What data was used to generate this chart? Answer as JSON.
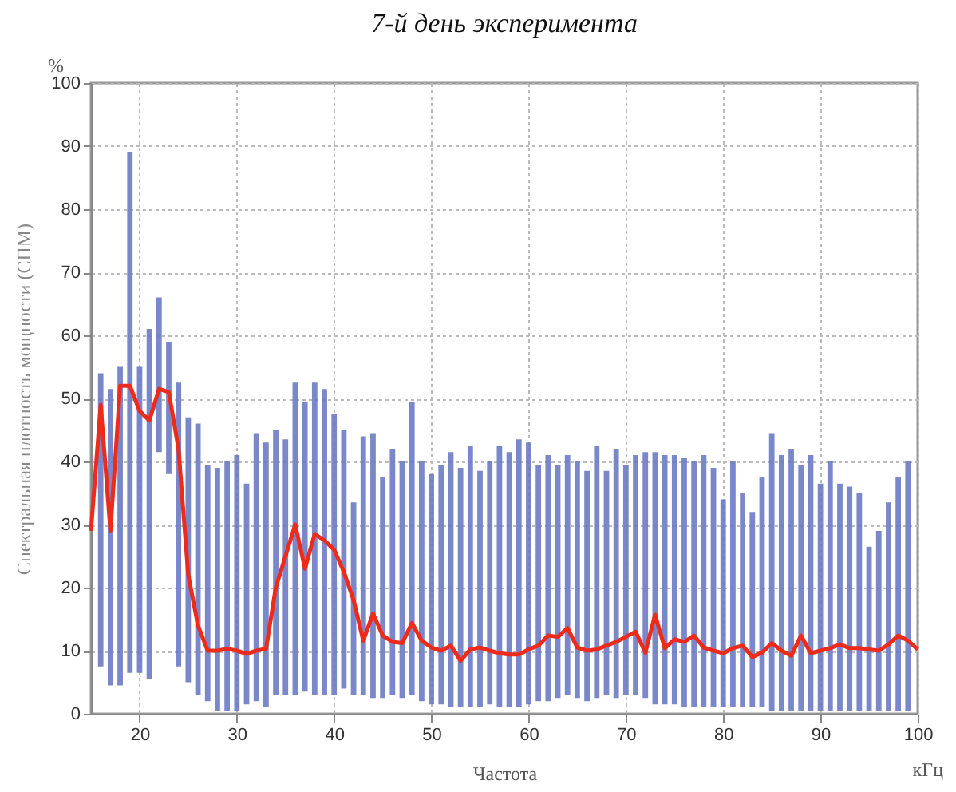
{
  "chart_data": {
    "type": "bar",
    "title": "7-й день эксперимента",
    "xlabel": "Частота",
    "ylabel": "Спектральная плотность мощности (СПМ)",
    "annotations": [
      "%",
      "кГц"
    ],
    "xlim": [
      15,
      100
    ],
    "xticks": [
      20,
      30,
      40,
      50,
      60,
      70,
      80,
      90,
      100
    ],
    "ylim": [
      0,
      100
    ],
    "yticks": [
      0,
      10,
      20,
      30,
      40,
      50,
      60,
      70,
      80,
      90,
      100
    ],
    "grid": true,
    "series": [
      {
        "color": "#6c7bc4",
        "x": [
          16,
          17,
          18,
          19,
          20,
          21,
          22,
          23,
          24,
          25,
          26,
          27,
          28,
          29,
          30,
          31,
          32,
          33,
          34,
          35,
          36,
          37,
          38,
          39,
          40,
          41,
          42,
          43,
          44,
          45,
          46,
          47,
          48,
          49,
          50,
          51,
          52,
          53,
          54,
          55,
          56,
          57,
          58,
          59,
          60,
          61,
          62,
          63,
          64,
          65,
          66,
          67,
          68,
          69,
          70,
          71,
          72,
          73,
          74,
          75,
          76,
          77,
          78,
          79,
          80,
          81,
          82,
          83,
          84,
          85,
          86,
          87,
          88,
          89,
          90,
          91,
          92,
          93,
          94,
          95,
          96,
          97,
          98,
          99
        ],
        "base": [
          7.5,
          4.5,
          4.5,
          6.5,
          6.5,
          5.5,
          41.5,
          38,
          7.5,
          5,
          3,
          2,
          0.5,
          0.5,
          0.5,
          1.5,
          2,
          1,
          3,
          3,
          3,
          3.5,
          3,
          3,
          3,
          4,
          3,
          3,
          2.5,
          2.5,
          3,
          2.5,
          3,
          2,
          1.5,
          1.5,
          1,
          1,
          1,
          1,
          1.5,
          1,
          1,
          1,
          1.5,
          2,
          2,
          2.5,
          3,
          2.5,
          2,
          2.5,
          3,
          2.5,
          3,
          3,
          2.5,
          1.5,
          1.5,
          1.5,
          1,
          1,
          1,
          1,
          1,
          1,
          1,
          1,
          1,
          0.5,
          0.5,
          0.5,
          0.5,
          0.5,
          0.5,
          0.5,
          0.5,
          0.5,
          0.5,
          0.5,
          0.5,
          0.5,
          0.5,
          0.5
        ],
        "values": [
          46.5,
          47,
          50.5,
          82.5,
          48.5,
          55.5,
          24.5,
          21,
          45,
          42,
          43,
          37.5,
          38.5,
          39.5,
          40.5,
          35,
          42.5,
          42,
          42,
          40.5,
          49.5,
          46,
          49.5,
          48.5,
          44.5,
          41,
          30.5,
          41,
          42,
          35,
          39,
          37.5,
          46.5,
          38,
          36.5,
          38,
          40.5,
          38,
          41.5,
          37.5,
          38.5,
          41.5,
          40.5,
          42.5,
          41.5,
          37.5,
          39,
          37,
          38,
          37.5,
          36.5,
          40,
          35.5,
          39.5,
          36.5,
          38,
          39,
          40,
          39.5,
          39.5,
          39.5,
          39,
          40,
          38,
          33,
          39,
          34,
          31,
          36.5,
          44,
          40.5,
          41.5,
          39,
          40.5,
          36,
          39.5,
          36,
          35.5,
          34.5,
          26,
          28.5,
          33,
          37,
          39.5
        ]
      },
      {
        "type": "line",
        "color": "#ee2a1b",
        "x": [
          15,
          16,
          17,
          18,
          19,
          20,
          21,
          22,
          23,
          24,
          25,
          26,
          27,
          28,
          29,
          30,
          31,
          32,
          33,
          34,
          35,
          36,
          37,
          38,
          39,
          40,
          41,
          42,
          43,
          44,
          45,
          46,
          47,
          48,
          49,
          50,
          51,
          52,
          53,
          54,
          55,
          56,
          57,
          58,
          59,
          60,
          61,
          62,
          63,
          64,
          65,
          66,
          67,
          68,
          69,
          70,
          71,
          72,
          73,
          74,
          75,
          76,
          77,
          78,
          79,
          80,
          81,
          82,
          83,
          84,
          85,
          86,
          87,
          88,
          89,
          90,
          91,
          92,
          93,
          94,
          95,
          96,
          97,
          98,
          99,
          100
        ],
        "values": [
          29,
          49,
          29,
          52,
          52,
          48,
          46.5,
          51.5,
          51,
          42,
          22,
          14,
          10,
          10,
          10.3,
          10,
          9.5,
          10,
          10.3,
          20,
          25,
          30,
          23,
          28.5,
          27.5,
          26,
          22.5,
          18,
          11.6,
          15.9,
          12.4,
          11.4,
          11.2,
          14.4,
          11.6,
          10.5,
          10,
          10.8,
          8.4,
          10.2,
          10.5,
          10,
          9.6,
          9.4,
          9.4,
          10.2,
          10.8,
          12.4,
          12.2,
          13.6,
          10.5,
          10,
          10.2,
          10.8,
          11.4,
          12.2,
          13,
          9.7,
          15.7,
          10.4,
          11.8,
          11.4,
          12.4,
          10.5,
          10,
          9.6,
          10.4,
          10.8,
          9,
          9.7,
          11.2,
          10,
          9.2,
          12.4,
          9.6,
          10,
          10.4,
          11,
          10.4,
          10.4,
          10.2,
          10,
          11,
          12.4,
          11.6,
          10.2
        ]
      }
    ]
  }
}
